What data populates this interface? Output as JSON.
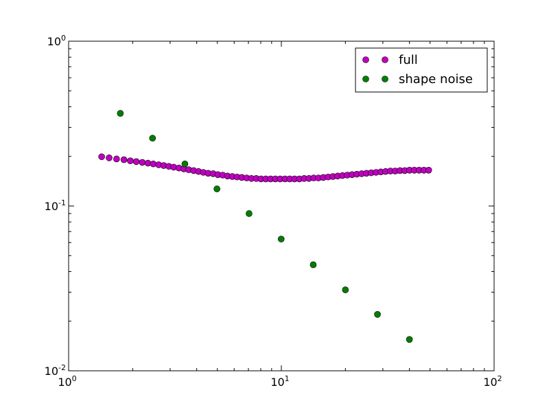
{
  "chart_data": {
    "type": "scatter",
    "title": "",
    "xlabel": "",
    "ylabel": "",
    "xscale": "log",
    "yscale": "log",
    "xlim": [
      1,
      100
    ],
    "ylim": [
      0.01,
      1
    ],
    "grid": false,
    "legend_position": "top-right",
    "xticks": [
      {
        "value": 1,
        "base": "10",
        "exp": "0"
      },
      {
        "value": 10,
        "base": "10",
        "exp": "1"
      },
      {
        "value": 100,
        "base": "10",
        "exp": "2"
      }
    ],
    "yticks": [
      {
        "value": 0.01,
        "base": "10",
        "exp": "-2"
      },
      {
        "value": 0.1,
        "base": "10",
        "exp": "-1"
      },
      {
        "value": 1,
        "base": "10",
        "exp": "0"
      }
    ],
    "series": [
      {
        "name": "full",
        "color": "#bf00bf",
        "dark_color": "#3a0a3a",
        "x": [
          1.43,
          1.55,
          1.68,
          1.82,
          1.95,
          2.08,
          2.22,
          2.36,
          2.5,
          2.65,
          2.8,
          2.96,
          3.12,
          3.3,
          3.48,
          3.67,
          3.87,
          4.08,
          4.3,
          4.53,
          4.78,
          5.03,
          5.3,
          5.58,
          5.88,
          6.19,
          6.52,
          6.87,
          7.23,
          7.62,
          8.02,
          8.45,
          8.9,
          9.37,
          9.87,
          10.4,
          10.95,
          11.53,
          12.15,
          12.8,
          13.48,
          14.2,
          14.95,
          15.75,
          16.59,
          17.47,
          18.4,
          19.38,
          20.41,
          21.5,
          22.64,
          23.85,
          25.12,
          26.45,
          27.86,
          29.34,
          30.9,
          32.55,
          34.28,
          36.1,
          38.02,
          40.04,
          42.17,
          44.41,
          46.78,
          49.27
        ],
        "y": [
          0.199,
          0.196,
          0.193,
          0.191,
          0.188,
          0.186,
          0.184,
          0.182,
          0.18,
          0.178,
          0.176,
          0.174,
          0.172,
          0.17,
          0.168,
          0.166,
          0.164,
          0.162,
          0.16,
          0.158,
          0.157,
          0.155,
          0.154,
          0.152,
          0.151,
          0.15,
          0.149,
          0.148,
          0.147,
          0.147,
          0.146,
          0.146,
          0.146,
          0.146,
          0.146,
          0.146,
          0.146,
          0.146,
          0.146,
          0.147,
          0.147,
          0.148,
          0.148,
          0.149,
          0.15,
          0.151,
          0.152,
          0.153,
          0.154,
          0.155,
          0.156,
          0.157,
          0.158,
          0.159,
          0.16,
          0.161,
          0.162,
          0.163,
          0.163,
          0.164,
          0.164,
          0.165,
          0.165,
          0.165,
          0.165,
          0.165
        ]
      },
      {
        "name": "shape noise",
        "color": "#007f00",
        "x": [
          1.75,
          2.48,
          3.52,
          4.98,
          7.05,
          9.98,
          14.12,
          20.0,
          28.3,
          40.0
        ],
        "y": [
          0.365,
          0.258,
          0.18,
          0.127,
          0.09,
          0.063,
          0.044,
          0.031,
          0.022,
          0.0155
        ]
      }
    ]
  }
}
